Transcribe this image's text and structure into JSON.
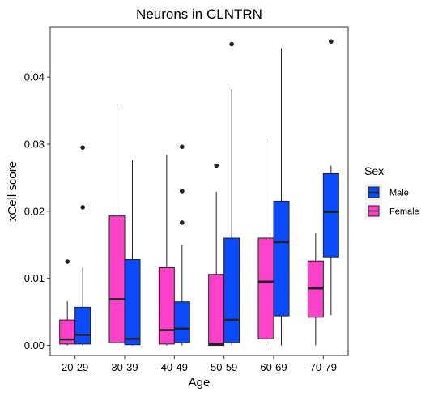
{
  "chart_data": {
    "type": "boxplot",
    "title": "Neurons in CLNTRN",
    "xlabel": "Age",
    "ylabel": "xCell score",
    "categories": [
      "20-29",
      "30-39",
      "40-49",
      "50-59",
      "60-69",
      "70-79"
    ],
    "ylim": [
      -0.0015,
      0.0475
    ],
    "yticks": [
      0.0,
      0.01,
      0.02,
      0.03,
      0.04
    ],
    "ytick_labels": [
      "0.00",
      "0.01",
      "0.02",
      "0.03",
      "0.04"
    ],
    "grid": false,
    "legend": {
      "title": "Sex",
      "position": "right",
      "entries": [
        {
          "key": "Male",
          "label": "Male"
        },
        {
          "key": "Female",
          "label": "Female"
        }
      ]
    },
    "colors": {
      "Female": "#ff40c8",
      "Male": "#0a4bff"
    },
    "series": [
      {
        "name": "Female",
        "boxes": [
          {
            "min": 0.0,
            "q1": 0.0002,
            "median": 0.0009,
            "q3": 0.0038,
            "max": 0.0066,
            "outliers": [
              0.0125
            ]
          },
          {
            "min": 0.0,
            "q1": 0.0004,
            "median": 0.0069,
            "q3": 0.0193,
            "max": 0.0352,
            "outliers": []
          },
          {
            "min": 0.0,
            "q1": 0.0002,
            "median": 0.0023,
            "q3": 0.0116,
            "max": 0.0284,
            "outliers": []
          },
          {
            "min": 0.0,
            "q1": 0.0,
            "median": 0.0002,
            "q3": 0.0106,
            "max": 0.0229,
            "outliers": [
              0.0268
            ]
          },
          {
            "min": 0.0,
            "q1": 0.001,
            "median": 0.0095,
            "q3": 0.016,
            "max": 0.0304,
            "outliers": []
          },
          {
            "min": 0.0,
            "q1": 0.0042,
            "median": 0.0085,
            "q3": 0.0126,
            "max": 0.0167,
            "outliers": []
          }
        ]
      },
      {
        "name": "Male",
        "boxes": [
          {
            "min": 0.0,
            "q1": 0.0002,
            "median": 0.0016,
            "q3": 0.0057,
            "max": 0.0116,
            "outliers": [
              0.0206,
              0.0295
            ]
          },
          {
            "min": 0.0,
            "q1": 0.0001,
            "median": 0.001,
            "q3": 0.0128,
            "max": 0.0276,
            "outliers": []
          },
          {
            "min": 0.0,
            "q1": 0.0004,
            "median": 0.0025,
            "q3": 0.0065,
            "max": 0.015,
            "outliers": [
              0.0183,
              0.023,
              0.0296
            ]
          },
          {
            "min": 0.0,
            "q1": 0.0004,
            "median": 0.0038,
            "q3": 0.016,
            "max": 0.0382,
            "outliers": [
              0.0449
            ]
          },
          {
            "min": 0.0,
            "q1": 0.0044,
            "median": 0.0154,
            "q3": 0.0215,
            "max": 0.0443,
            "outliers": []
          },
          {
            "min": 0.0045,
            "q1": 0.0132,
            "median": 0.0199,
            "q3": 0.0256,
            "max": 0.0268,
            "outliers": [
              0.0453
            ]
          }
        ]
      }
    ]
  }
}
